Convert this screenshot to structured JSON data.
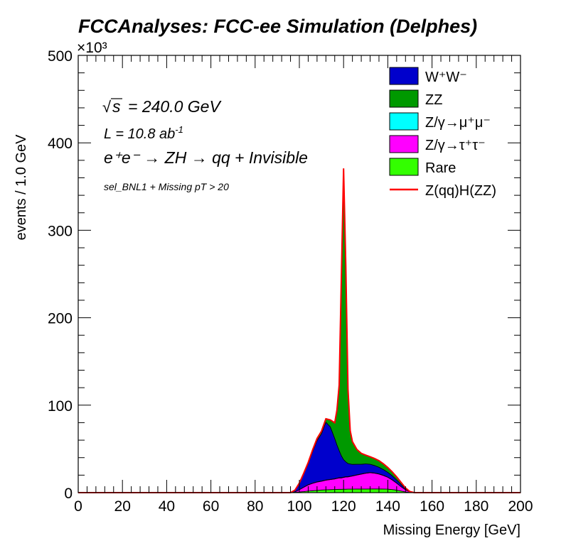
{
  "chart_data": {
    "type": "area",
    "title": "FCCAnalyses: FCC-ee Simulation (Delphes)",
    "xlabel": "Missing Energy [GeV]",
    "ylabel": "events / 1.0 GeV",
    "y_multiplier_label": "×10³",
    "xlim": [
      0,
      200
    ],
    "ylim": [
      0,
      500
    ],
    "x_ticks": [
      "0",
      "20",
      "40",
      "60",
      "80",
      "100",
      "120",
      "140",
      "160",
      "180",
      "200"
    ],
    "y_ticks": [
      "0",
      "100",
      "200",
      "300",
      "400",
      "500"
    ],
    "stacked": true,
    "legend_position": "top-right",
    "annotations": {
      "sqrt_s": "= 240.0 GeV",
      "sqrt_symbol": "√",
      "sqrt_var": "s",
      "lumi_prefix": "L = 10.8 ab",
      "lumi_exp": "-1",
      "process": "e⁺e⁻ → ZH → qq + Invisible",
      "selection": "sel_BNL1 + Missing pT > 20"
    },
    "legend": [
      {
        "key": "ww",
        "label": "W⁺W⁻",
        "color": "#0000cc",
        "style": "fill"
      },
      {
        "key": "zz",
        "label": "ZZ",
        "color": "#009900",
        "style": "fill"
      },
      {
        "key": "mumu",
        "label": "Z/γ→μ⁺μ⁻",
        "color": "#00ffff",
        "style": "fill"
      },
      {
        "key": "tautau",
        "label": "Z/γ→τ⁺τ⁻",
        "color": "#ff00ff",
        "style": "fill"
      },
      {
        "key": "rare",
        "label": "Rare",
        "color": "#33ff00",
        "style": "fill"
      },
      {
        "key": "signal",
        "label": "Z(qq)H(ZZ)",
        "color": "#ff0000",
        "style": "line"
      }
    ],
    "x_points": [
      0,
      96,
      98,
      100,
      102,
      104,
      106,
      108,
      110,
      112,
      114,
      116,
      117,
      118,
      119,
      120,
      121,
      122,
      123,
      124,
      126,
      128,
      130,
      132,
      134,
      136,
      138,
      140,
      142,
      144,
      146,
      148,
      150,
      152,
      200
    ],
    "series": [
      {
        "key": "rare",
        "name": "Rare",
        "values": [
          0,
          0,
          0.3,
          0.8,
          1.2,
          1.8,
          2.2,
          2.6,
          3.0,
          3.2,
          3.4,
          3.6,
          3.7,
          3.8,
          3.8,
          3.9,
          3.9,
          4.0,
          4.0,
          4.0,
          4.1,
          4.1,
          4.1,
          4.2,
          4.2,
          4.2,
          4.1,
          4.0,
          3.5,
          2.8,
          1.8,
          0.8,
          0.2,
          0,
          0
        ]
      },
      {
        "key": "tautau",
        "name": "Z/γ→τ⁺τ⁻",
        "values": [
          0,
          0,
          0.5,
          2.5,
          5,
          7,
          8.5,
          9.5,
          10,
          11,
          11.5,
          12,
          12.5,
          13,
          13,
          13.5,
          14,
          14,
          14.5,
          15,
          16,
          17,
          18,
          18.5,
          18,
          17,
          15.5,
          13.5,
          11,
          8,
          5,
          2.5,
          0.5,
          0,
          0
        ]
      },
      {
        "key": "mumu",
        "name": "Z/γ→μ⁺μ⁻",
        "values": [
          0,
          0,
          0,
          0.1,
          0.1,
          0.2,
          0.2,
          0.3,
          0.3,
          0.3,
          0.3,
          0.3,
          0.3,
          0.3,
          0.3,
          0.3,
          0.3,
          0.3,
          0.3,
          0.3,
          0.3,
          0.3,
          0.3,
          0.3,
          0.3,
          0.3,
          0.3,
          0.2,
          0.2,
          0.2,
          0.1,
          0.1,
          0,
          0,
          0
        ]
      },
      {
        "key": "ww",
        "name": "W⁺W⁻",
        "values": [
          0,
          0,
          2,
          7,
          15,
          24,
          36,
          47,
          54,
          66,
          60,
          46,
          38,
          31,
          25,
          20,
          17,
          15,
          14,
          13,
          12,
          11,
          10.5,
          9.5,
          8.5,
          7.5,
          6.5,
          5.5,
          4.5,
          3.5,
          2.5,
          1,
          0.3,
          0,
          0
        ]
      },
      {
        "key": "zz",
        "name": "ZZ",
        "values": [
          0,
          0,
          0,
          0.5,
          1,
          1.5,
          2,
          2.5,
          3,
          4,
          8,
          18,
          40,
          75,
          205,
          333,
          225,
          85,
          38,
          26,
          17,
          12.5,
          10,
          8.5,
          8,
          7.5,
          6.5,
          5.5,
          4.5,
          3.5,
          2.3,
          1,
          0.2,
          0,
          0
        ]
      }
    ],
    "signal_line": {
      "key": "signal",
      "name": "Z(qq)H(ZZ)",
      "note": "drawn along the top of the stacked total"
    }
  }
}
